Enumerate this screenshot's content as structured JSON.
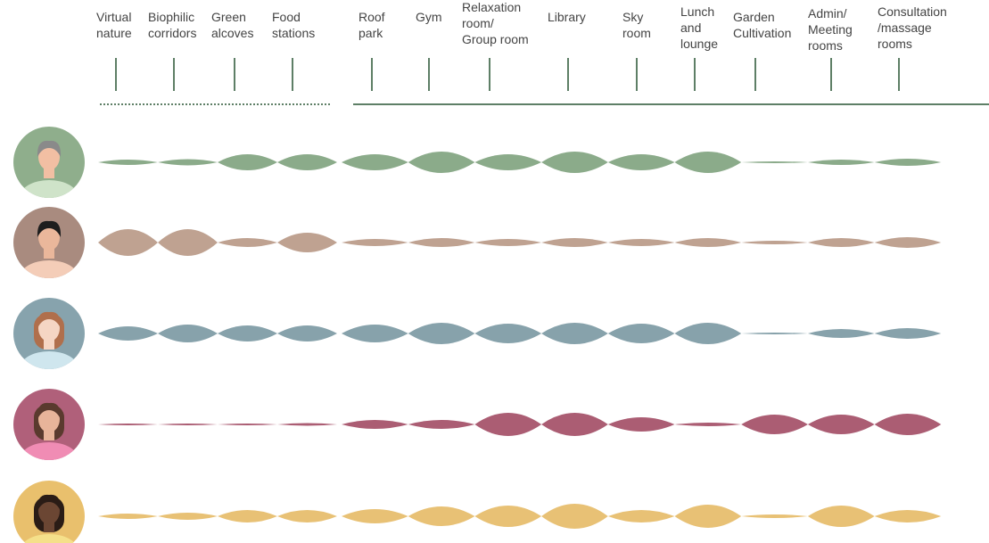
{
  "chart_data": {
    "type": "lens",
    "categories": [
      [
        "Virtual",
        "nature"
      ],
      [
        "Biophilic",
        "corridors"
      ],
      [
        "Green",
        "alcoves"
      ],
      [
        "Food",
        "stations"
      ],
      [
        "Roof",
        "park"
      ],
      [
        "Gym"
      ],
      [
        "Relaxation",
        "room/",
        "Group room"
      ],
      [
        "Library"
      ],
      [
        "Sky",
        "room"
      ],
      [
        "Lunch",
        "and",
        "lounge"
      ],
      [
        "Garden",
        "Cultivation"
      ],
      [
        "Admin/",
        "Meeting",
        "rooms"
      ],
      [
        "Consultation",
        "/massage",
        "rooms"
      ]
    ],
    "series": [
      {
        "color": "#8bab8a",
        "values": [
          6,
          7,
          18,
          18,
          18,
          24,
          18,
          24,
          18,
          24,
          2,
          6,
          8
        ]
      },
      {
        "color": "#bfa291",
        "values": [
          30,
          30,
          10,
          22,
          8,
          10,
          8,
          10,
          8,
          10,
          4,
          10,
          12
        ]
      },
      {
        "color": "#87a2ab",
        "values": [
          16,
          20,
          18,
          18,
          20,
          24,
          22,
          24,
          22,
          24,
          2,
          10,
          12
        ]
      },
      {
        "color": "#ab5d73",
        "values": [
          2,
          2,
          2,
          3,
          10,
          10,
          26,
          26,
          16,
          4,
          22,
          22,
          24
        ]
      },
      {
        "color": "#e8c175",
        "values": [
          6,
          8,
          14,
          14,
          16,
          22,
          24,
          28,
          14,
          26,
          4,
          24,
          14
        ]
      }
    ]
  }
}
